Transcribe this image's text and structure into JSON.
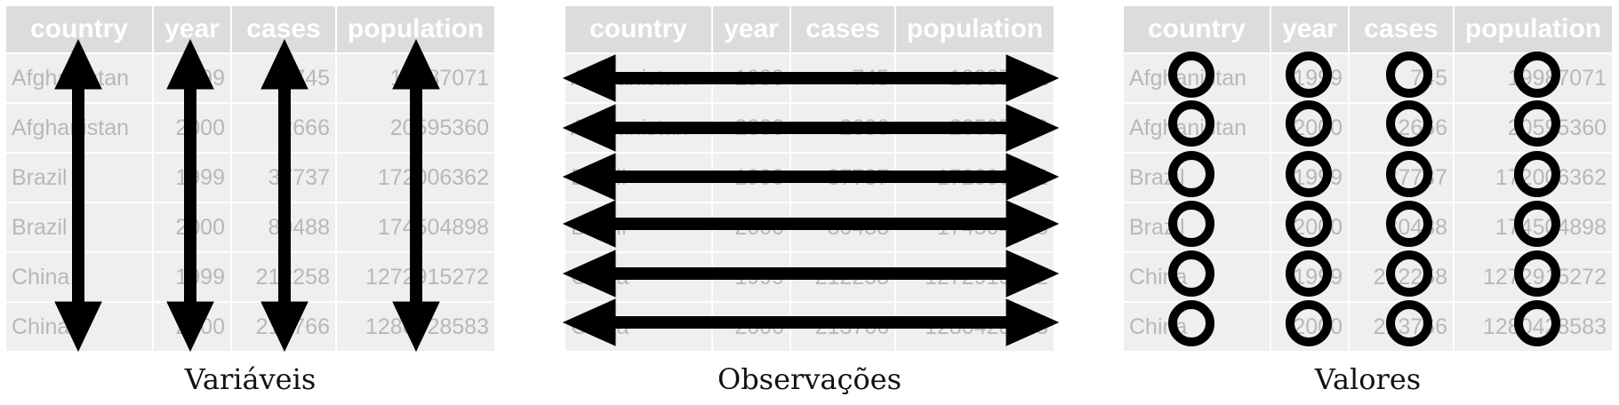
{
  "columns": [
    "country",
    "year",
    "cases",
    "population"
  ],
  "rows": [
    [
      "Afghanistan",
      "1999",
      "745",
      "19987071"
    ],
    [
      "Afghanistan",
      "2000",
      "2666",
      "20595360"
    ],
    [
      "Brazil",
      "1999",
      "37737",
      "172006362"
    ],
    [
      "Brazil",
      "2000",
      "80488",
      "174504898"
    ],
    [
      "China",
      "1999",
      "212258",
      "1272915272"
    ],
    [
      "China",
      "2000",
      "213766",
      "1280428583"
    ]
  ],
  "panels": [
    {
      "caption": "Variáveis",
      "marker": "vertical-arrows"
    },
    {
      "caption": "Observações",
      "marker": "horizontal-arrows"
    },
    {
      "caption": "Valores",
      "marker": "circles"
    }
  ],
  "colors": {
    "header_bg": "#dcdcdc",
    "cell_bg": "#efefef",
    "cell_text": "#b8b8b8",
    "marker": "#000000"
  }
}
